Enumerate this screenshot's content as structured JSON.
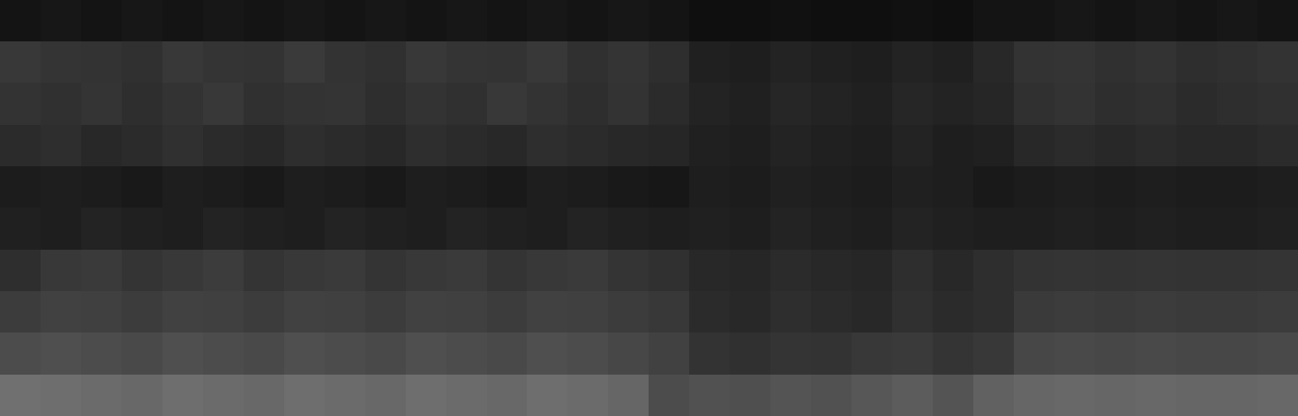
{
  "chart_data": {
    "type": "heatmap",
    "color": "gray",
    "tick_labels": false,
    "color_range": [
      0,
      100
    ],
    "cells": [
      [
        8,
        9,
        8,
        9,
        8,
        9,
        8,
        9,
        8,
        9,
        8,
        9,
        8,
        9,
        8,
        9,
        8,
        6,
        6,
        7,
        6,
        6,
        7,
        6,
        8,
        8,
        9,
        8,
        9,
        8,
        9,
        8
      ],
      [
        22,
        21,
        20,
        19,
        22,
        21,
        20,
        23,
        20,
        19,
        22,
        21,
        20,
        22,
        19,
        21,
        18,
        13,
        12,
        14,
        13,
        12,
        14,
        13,
        16,
        20,
        21,
        19,
        20,
        18,
        19,
        20
      ],
      [
        20,
        19,
        21,
        18,
        20,
        22,
        19,
        20,
        21,
        18,
        20,
        19,
        22,
        20,
        18,
        20,
        17,
        14,
        13,
        15,
        14,
        13,
        15,
        14,
        15,
        19,
        20,
        18,
        19,
        17,
        18,
        19
      ],
      [
        17,
        18,
        16,
        17,
        19,
        17,
        16,
        18,
        17,
        16,
        18,
        17,
        16,
        18,
        17,
        16,
        15,
        13,
        12,
        14,
        13,
        12,
        14,
        12,
        13,
        16,
        17,
        16,
        17,
        16,
        16,
        17
      ],
      [
        11,
        12,
        11,
        10,
        12,
        11,
        10,
        12,
        11,
        10,
        12,
        11,
        10,
        12,
        11,
        10,
        9,
        12,
        11,
        13,
        12,
        11,
        13,
        12,
        10,
        11,
        12,
        11,
        12,
        11,
        11,
        12
      ],
      [
        13,
        12,
        14,
        13,
        12,
        14,
        13,
        12,
        14,
        13,
        12,
        14,
        13,
        12,
        14,
        13,
        12,
        13,
        12,
        14,
        13,
        12,
        14,
        13,
        12,
        12,
        13,
        12,
        13,
        12,
        12,
        13
      ],
      [
        18,
        22,
        23,
        21,
        22,
        24,
        21,
        22,
        23,
        21,
        22,
        23,
        21,
        22,
        23,
        21,
        19,
        16,
        15,
        17,
        16,
        15,
        18,
        16,
        18,
        20,
        21,
        20,
        21,
        20,
        20,
        21
      ],
      [
        24,
        26,
        25,
        24,
        26,
        25,
        24,
        26,
        25,
        24,
        26,
        25,
        24,
        26,
        25,
        24,
        22,
        17,
        16,
        18,
        17,
        16,
        19,
        17,
        18,
        23,
        24,
        23,
        24,
        23,
        23,
        24
      ],
      [
        30,
        31,
        30,
        29,
        31,
        30,
        29,
        31,
        30,
        29,
        31,
        30,
        29,
        31,
        30,
        28,
        26,
        20,
        19,
        21,
        20,
        22,
        23,
        21,
        22,
        28,
        29,
        28,
        29,
        28,
        28,
        29
      ],
      [
        44,
        43,
        42,
        41,
        43,
        42,
        41,
        43,
        42,
        41,
        43,
        42,
        41,
        43,
        42,
        40,
        30,
        32,
        31,
        33,
        32,
        34,
        36,
        33,
        38,
        40,
        41,
        40,
        41,
        40,
        40,
        41
      ]
    ]
  }
}
